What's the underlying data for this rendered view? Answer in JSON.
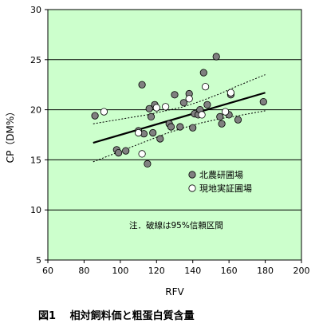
{
  "chart_data": {
    "type": "scatter",
    "xlabel": "RFV",
    "ylabel": "CP（DM%）",
    "xlim": [
      60,
      200
    ],
    "ylim": [
      5,
      30
    ],
    "xticks": [
      60,
      80,
      100,
      120,
      140,
      160,
      180,
      200
    ],
    "yticks": [
      5,
      10,
      15,
      20,
      25,
      30
    ],
    "grid": "horizontal",
    "plot_background": "#ccffcc",
    "legend_position": "lower-right",
    "series": [
      {
        "name": "北農研圃場",
        "marker": "filled-circle",
        "color": "#808080",
        "points": [
          [
            86,
            19.4
          ],
          [
            98,
            16.0
          ],
          [
            99,
            15.7
          ],
          [
            103,
            15.9
          ],
          [
            110,
            17.9
          ],
          [
            112,
            22.5
          ],
          [
            113,
            17.6
          ],
          [
            115,
            14.6
          ],
          [
            116,
            20.1
          ],
          [
            117,
            19.3
          ],
          [
            118,
            17.7
          ],
          [
            119,
            20.5
          ],
          [
            122,
            17.1
          ],
          [
            127,
            18.6
          ],
          [
            128,
            18.3
          ],
          [
            130,
            21.5
          ],
          [
            133,
            18.3
          ],
          [
            135,
            20.7
          ],
          [
            138,
            21.6
          ],
          [
            140,
            18.2
          ],
          [
            141,
            19.6
          ],
          [
            143,
            19.5
          ],
          [
            144,
            20.0
          ],
          [
            146,
            23.7
          ],
          [
            148,
            20.5
          ],
          [
            153,
            25.3
          ],
          [
            155,
            19.3
          ],
          [
            156,
            18.6
          ],
          [
            160,
            19.5
          ],
          [
            161,
            21.5
          ],
          [
            165,
            19.0
          ],
          [
            179,
            20.8
          ]
        ]
      },
      {
        "name": "現地実証圃場",
        "marker": "open-circle",
        "color": "#ffffff",
        "points": [
          [
            91,
            19.8
          ],
          [
            110,
            17.7
          ],
          [
            112,
            15.6
          ],
          [
            120,
            20.2
          ],
          [
            125,
            20.3
          ],
          [
            138,
            21.1
          ],
          [
            145,
            19.5
          ],
          [
            147,
            22.3
          ],
          [
            158,
            19.8
          ],
          [
            161,
            21.7
          ]
        ]
      }
    ],
    "regression": {
      "x": [
        85,
        180
      ],
      "y": [
        16.7,
        21.7
      ]
    },
    "ci_upper": {
      "x": [
        85,
        95,
        105,
        115,
        125,
        135,
        145,
        155,
        165,
        180
      ],
      "y": [
        18.6,
        18.9,
        19.2,
        19.5,
        19.9,
        20.3,
        20.9,
        21.6,
        22.4,
        23.5
      ]
    },
    "ci_lower": {
      "x": [
        85,
        95,
        105,
        115,
        125,
        135,
        145,
        155,
        165,
        180
      ],
      "y": [
        14.8,
        15.5,
        16.2,
        16.9,
        17.6,
        18.2,
        18.7,
        19.1,
        19.4,
        19.9
      ]
    },
    "annotation": "注．破線は95%信頼区間",
    "caption": "図1　 相対飼料価と粗蛋白質含量"
  }
}
